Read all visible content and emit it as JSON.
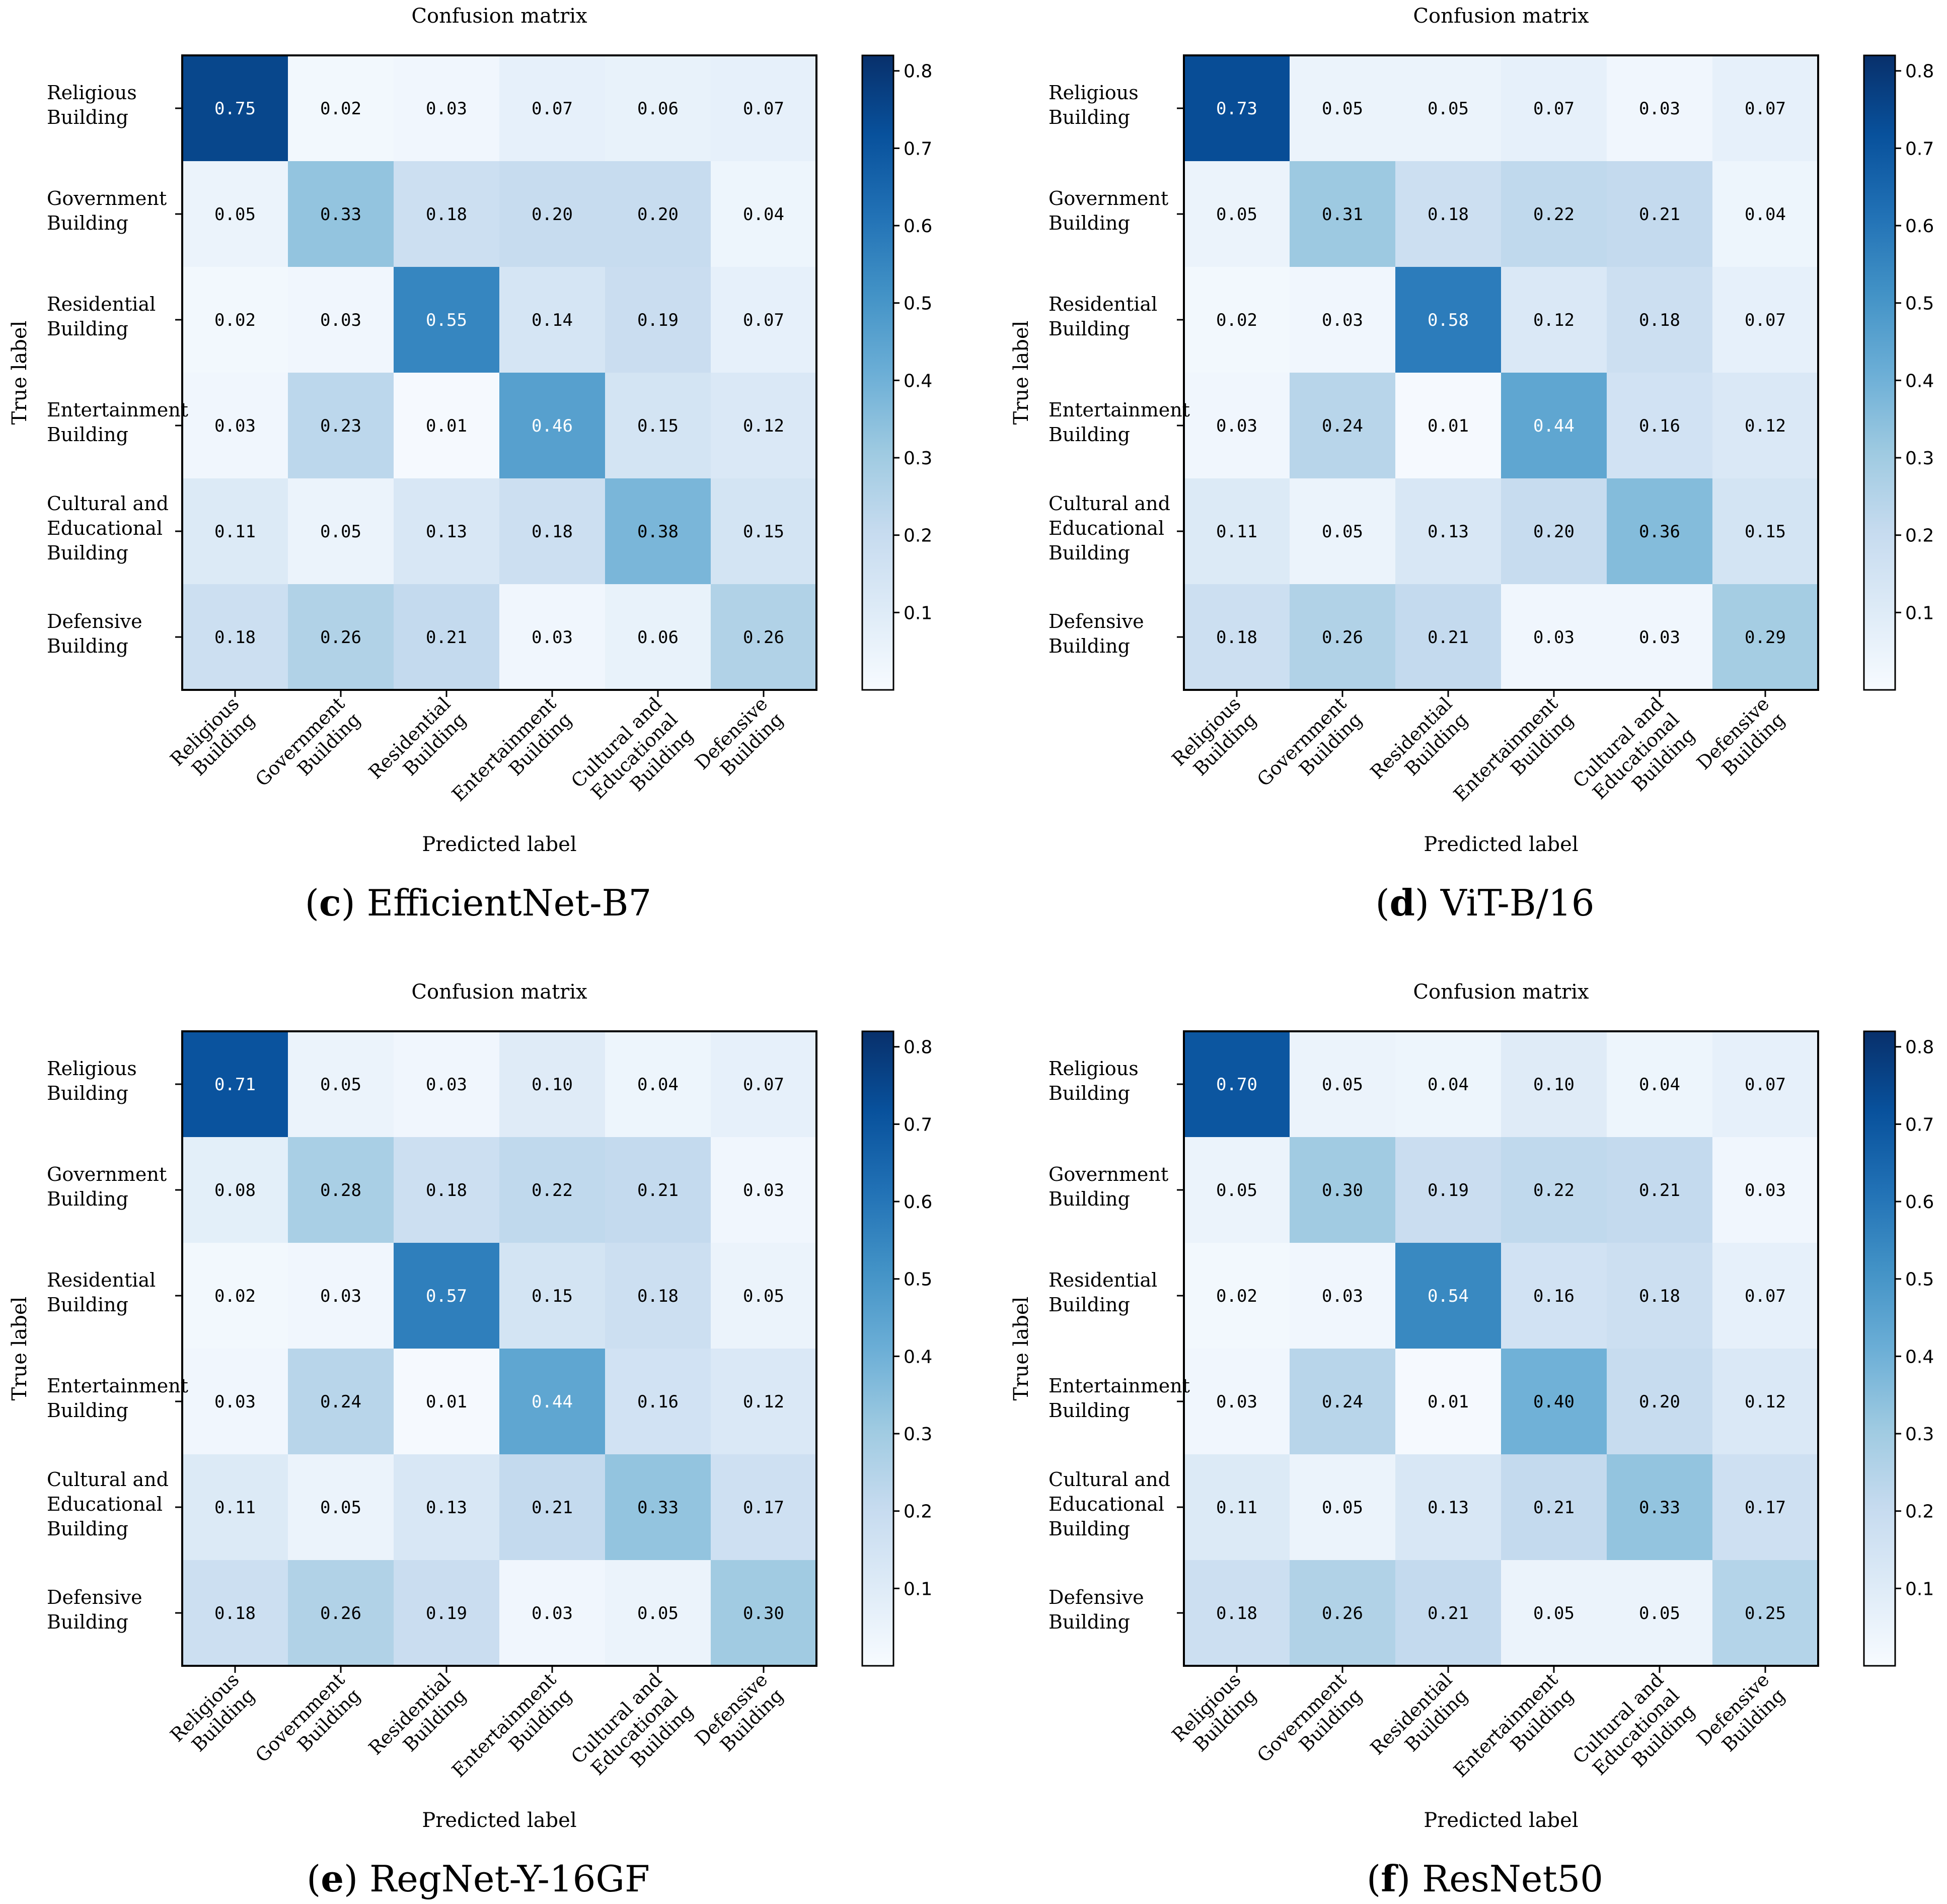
{
  "chart_data": [
    {
      "type": "heatmap",
      "panel_letter": "c",
      "model": "EfficientNet-B7",
      "title": "Confusion matrix",
      "xlabel": "Predicted label",
      "ylabel": "True label",
      "row_labels": [
        "Religious|Building",
        "Government|Building",
        "Residential|Building",
        "Entertainment|Building",
        "Cultural and|Educational|Building",
        "Defensive|Building"
      ],
      "col_labels": [
        "Religious|Building",
        "Government|Building",
        "Residential|Building",
        "Entertainment|Building",
        "Cultural and|Educational|Building",
        "Defensive|Building"
      ],
      "values": [
        [
          "0.75",
          "0.02",
          "0.03",
          "0.07",
          "0.06",
          "0.07"
        ],
        [
          "0.05",
          "0.33",
          "0.18",
          "0.20",
          "0.20",
          "0.04"
        ],
        [
          "0.02",
          "0.03",
          "0.55",
          "0.14",
          "0.19",
          "0.07"
        ],
        [
          "0.03",
          "0.23",
          "0.01",
          "0.46",
          "0.15",
          "0.12"
        ],
        [
          "0.11",
          "0.05",
          "0.13",
          "0.18",
          "0.38",
          "0.15"
        ],
        [
          "0.18",
          "0.26",
          "0.21",
          "0.03",
          "0.06",
          "0.26"
        ]
      ],
      "colorbar": {
        "min": 0.0,
        "max": 0.82,
        "ticks": [
          "0.1",
          "0.2",
          "0.3",
          "0.4",
          "0.5",
          "0.6",
          "0.7",
          "0.8"
        ]
      }
    },
    {
      "type": "heatmap",
      "panel_letter": "d",
      "model": "ViT-B/16",
      "title": "Confusion matrix",
      "xlabel": "Predicted label",
      "ylabel": "True label",
      "row_labels": [
        "Religious|Building",
        "Government|Building",
        "Residential|Building",
        "Entertainment|Building",
        "Cultural and|Educational|Building",
        "Defensive|Building"
      ],
      "col_labels": [
        "Religious|Building",
        "Government|Building",
        "Residential|Building",
        "Entertainment|Building",
        "Cultural and|Educational|Building",
        "Defensive|Building"
      ],
      "values": [
        [
          "0.73",
          "0.05",
          "0.05",
          "0.07",
          "0.03",
          "0.07"
        ],
        [
          "0.05",
          "0.31",
          "0.18",
          "0.22",
          "0.21",
          "0.04"
        ],
        [
          "0.02",
          "0.03",
          "0.58",
          "0.12",
          "0.18",
          "0.07"
        ],
        [
          "0.03",
          "0.24",
          "0.01",
          "0.44",
          "0.16",
          "0.12"
        ],
        [
          "0.11",
          "0.05",
          "0.13",
          "0.20",
          "0.36",
          "0.15"
        ],
        [
          "0.18",
          "0.26",
          "0.21",
          "0.03",
          "0.03",
          "0.29"
        ]
      ],
      "colorbar": {
        "min": 0.0,
        "max": 0.82,
        "ticks": [
          "0.1",
          "0.2",
          "0.3",
          "0.4",
          "0.5",
          "0.6",
          "0.7",
          "0.8"
        ]
      }
    },
    {
      "type": "heatmap",
      "panel_letter": "e",
      "model": "RegNet-Y-16GF",
      "title": "Confusion matrix",
      "xlabel": "Predicted label",
      "ylabel": "True label",
      "row_labels": [
        "Religious|Building",
        "Government|Building",
        "Residential|Building",
        "Entertainment|Building",
        "Cultural and|Educational|Building",
        "Defensive|Building"
      ],
      "col_labels": [
        "Religious|Building",
        "Government|Building",
        "Residential|Building",
        "Entertainment|Building",
        "Cultural and|Educational|Building",
        "Defensive|Building"
      ],
      "values": [
        [
          "0.71",
          "0.05",
          "0.03",
          "0.10",
          "0.04",
          "0.07"
        ],
        [
          "0.08",
          "0.28",
          "0.18",
          "0.22",
          "0.21",
          "0.03"
        ],
        [
          "0.02",
          "0.03",
          "0.57",
          "0.15",
          "0.18",
          "0.05"
        ],
        [
          "0.03",
          "0.24",
          "0.01",
          "0.44",
          "0.16",
          "0.12"
        ],
        [
          "0.11",
          "0.05",
          "0.13",
          "0.21",
          "0.33",
          "0.17"
        ],
        [
          "0.18",
          "0.26",
          "0.19",
          "0.03",
          "0.05",
          "0.30"
        ]
      ],
      "colorbar": {
        "min": 0.0,
        "max": 0.82,
        "ticks": [
          "0.1",
          "0.2",
          "0.3",
          "0.4",
          "0.5",
          "0.6",
          "0.7",
          "0.8"
        ]
      }
    },
    {
      "type": "heatmap",
      "panel_letter": "f",
      "model": "ResNet50",
      "title": "Confusion matrix",
      "xlabel": "Predicted label",
      "ylabel": "True label",
      "row_labels": [
        "Religious|Building",
        "Government|Building",
        "Residential|Building",
        "Entertainment|Building",
        "Cultural and|Educational|Building",
        "Defensive|Building"
      ],
      "col_labels": [
        "Religious|Building",
        "Government|Building",
        "Residential|Building",
        "Entertainment|Building",
        "Cultural and|Educational|Building",
        "Defensive|Building"
      ],
      "values": [
        [
          "0.70",
          "0.05",
          "0.04",
          "0.10",
          "0.04",
          "0.07"
        ],
        [
          "0.05",
          "0.30",
          "0.19",
          "0.22",
          "0.21",
          "0.03"
        ],
        [
          "0.02",
          "0.03",
          "0.54",
          "0.16",
          "0.18",
          "0.07"
        ],
        [
          "0.03",
          "0.24",
          "0.01",
          "0.40",
          "0.20",
          "0.12"
        ],
        [
          "0.11",
          "0.05",
          "0.13",
          "0.21",
          "0.33",
          "0.17"
        ],
        [
          "0.18",
          "0.26",
          "0.21",
          "0.05",
          "0.05",
          "0.25"
        ]
      ],
      "colorbar": {
        "min": 0.0,
        "max": 0.82,
        "ticks": [
          "0.1",
          "0.2",
          "0.3",
          "0.4",
          "0.5",
          "0.6",
          "0.7",
          "0.8"
        ]
      }
    }
  ]
}
